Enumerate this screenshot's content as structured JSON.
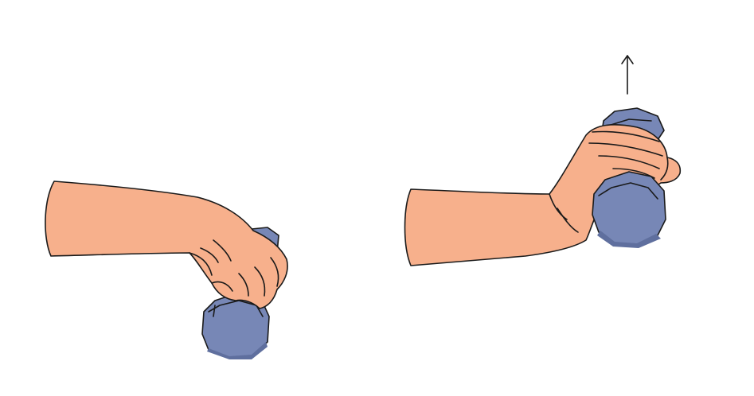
{
  "colors": {
    "background": "#ffffff",
    "skin": "#f7b08c",
    "weight": "#7787b6",
    "weight_dark": "#5f6f9e",
    "outline": "#1a1a1a"
  },
  "icons": {
    "direction": "arrow-up-icon"
  }
}
